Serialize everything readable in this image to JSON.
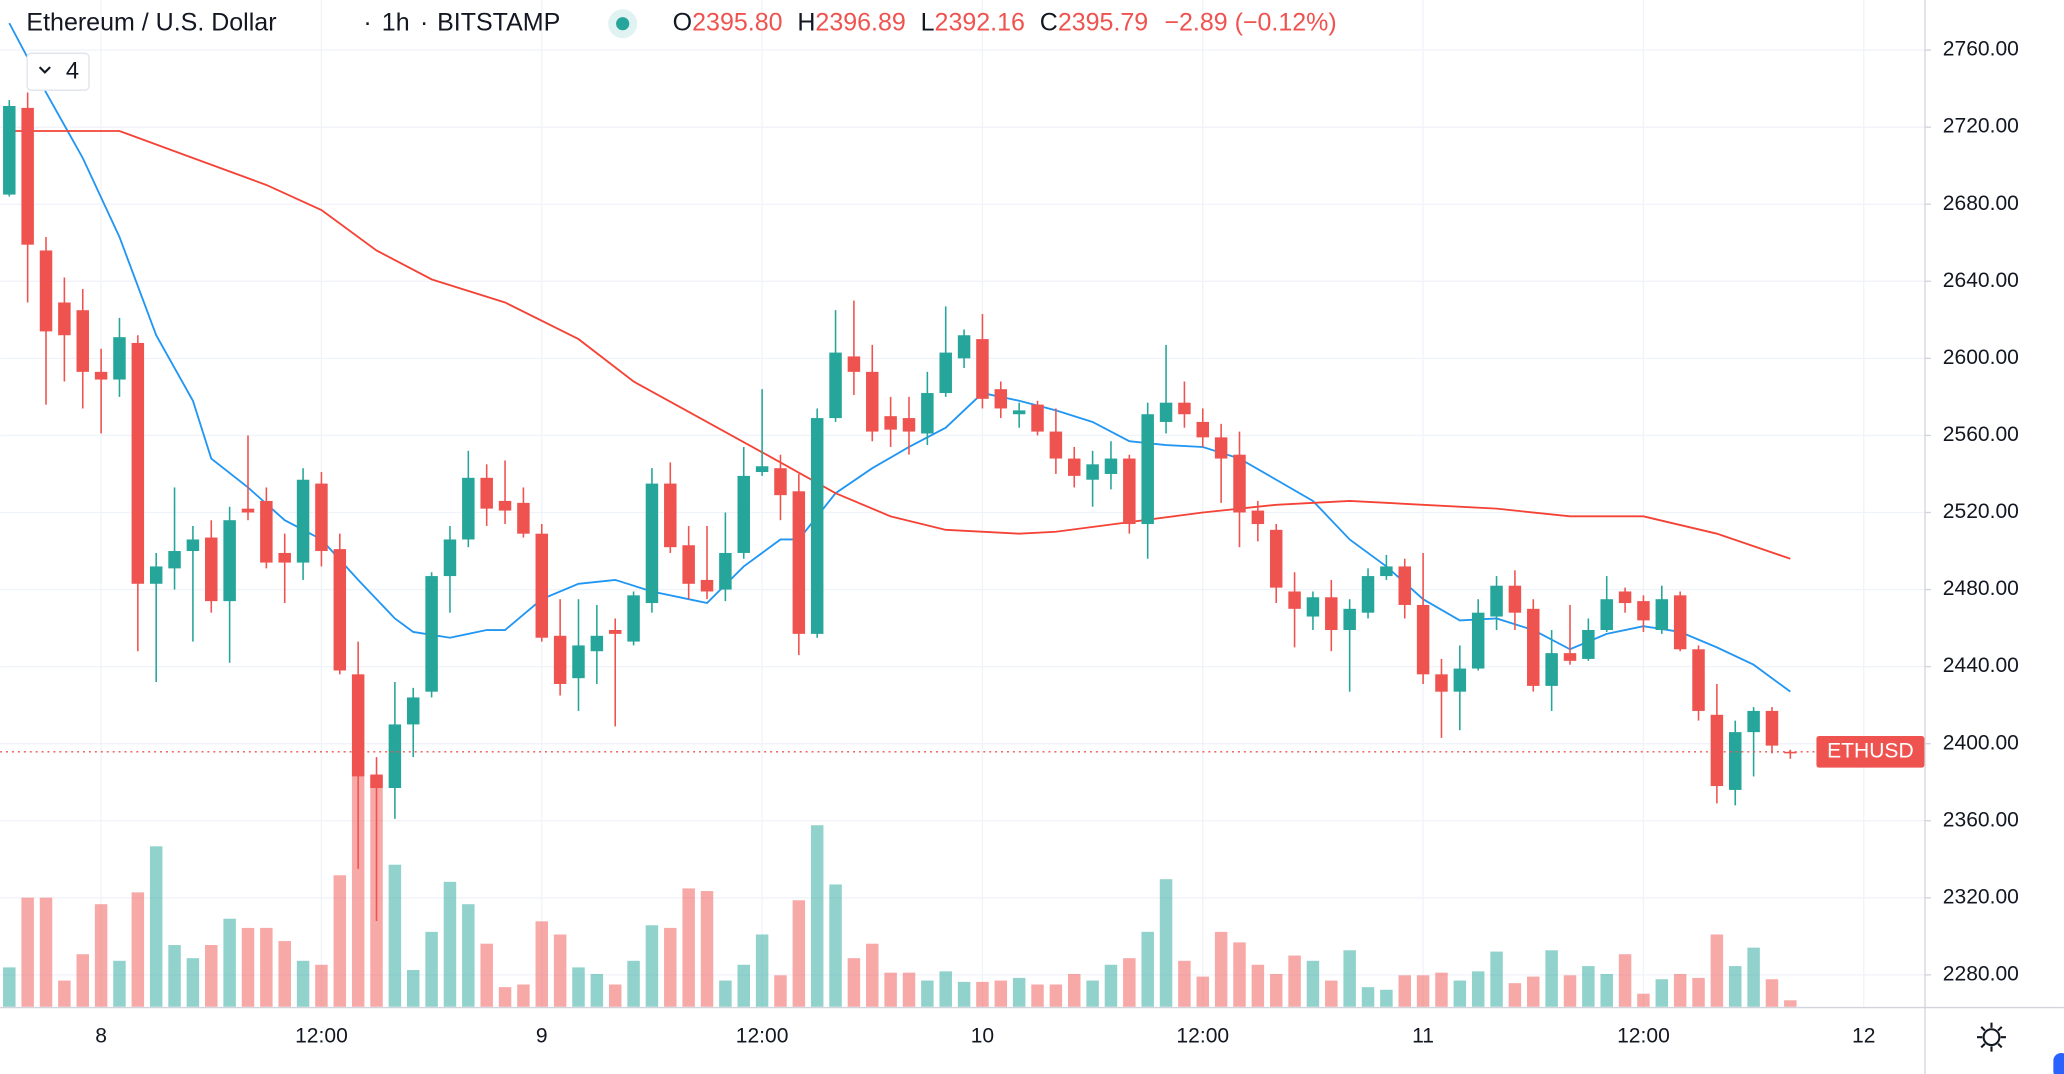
{
  "chart_data": {
    "type": "candlestick",
    "title": "Ethereum / U.S. Dollar",
    "interval": "1h",
    "exchange": "BITSTAMP",
    "legend_values": [
      {
        "label": "O",
        "value": "2395.80"
      },
      {
        "label": "H",
        "value": "2396.89"
      },
      {
        "label": "L",
        "value": "2392.16"
      },
      {
        "label": "C",
        "value": "2395.79"
      }
    ],
    "change": "−2.89 (−0.12%)",
    "hidden_indicators": 4,
    "up_color": "#26a69a",
    "down_color": "#ef5350",
    "open": [
      2685,
      2730,
      2656,
      2629,
      2625,
      2593,
      2589,
      2608,
      2483,
      2491,
      2500,
      2507,
      2474,
      2522,
      2526,
      2499,
      2494,
      2535,
      2501,
      2436,
      2384,
      2377,
      2410,
      2427,
      2487,
      2506,
      2538,
      2526,
      2525,
      2509,
      2456,
      2434,
      2448,
      2459,
      2453,
      2473,
      2535,
      2503,
      2485,
      2480,
      2499,
      2541,
      2543,
      2531,
      2457,
      2569,
      2601,
      2593,
      2570,
      2569,
      2561,
      2582,
      2600,
      2610,
      2584,
      2571,
      2576,
      2562,
      2548,
      2537,
      2540,
      2548,
      2514,
      2567,
      2577,
      2567,
      2559,
      2550,
      2521,
      2511,
      2479,
      2466,
      2476,
      2459,
      2468,
      2487,
      2492,
      2472,
      2436,
      2427,
      2439,
      2466,
      2482,
      2470,
      2430,
      2447,
      2444,
      2459,
      2479,
      2474,
      2459,
      2477,
      2449,
      2415,
      2376,
      2406,
      2417,
      2395.8
    ],
    "high": [
      2734,
      2738,
      2663,
      2642,
      2636,
      2605,
      2621,
      2612,
      2499,
      2533,
      2513,
      2516,
      2523,
      2560,
      2533,
      2509,
      2543,
      2541,
      2509,
      2453,
      2393,
      2432,
      2429,
      2489,
      2513,
      2552,
      2545,
      2547,
      2533,
      2514,
      2475,
      2475,
      2472,
      2465,
      2479,
      2543,
      2546,
      2513,
      2513,
      2520,
      2554,
      2584,
      2550,
      2540,
      2574,
      2625,
      2630,
      2607,
      2580,
      2580,
      2593,
      2627,
      2615,
      2623,
      2588,
      2577,
      2578,
      2574,
      2554,
      2552,
      2557,
      2550,
      2577,
      2607,
      2588,
      2574,
      2566,
      2562,
      2526,
      2514,
      2489,
      2479,
      2485,
      2475,
      2491,
      2498,
      2496,
      2499,
      2444,
      2451,
      2475,
      2487,
      2490,
      2475,
      2459,
      2472,
      2465,
      2487,
      2481,
      2477,
      2482,
      2479,
      2451,
      2431,
      2412,
      2419,
      2419,
      2396.89
    ],
    "low": [
      2684,
      2629,
      2576,
      2588,
      2574,
      2561,
      2580,
      2448,
      2432,
      2480,
      2453,
      2468,
      2442,
      2516,
      2491,
      2473,
      2485,
      2492,
      2436,
      2335,
      2308,
      2361,
      2393,
      2424,
      2468,
      2502,
      2513,
      2514,
      2507,
      2453,
      2425,
      2417,
      2431,
      2409,
      2451,
      2468,
      2499,
      2475,
      2475,
      2474,
      2496,
      2539,
      2516,
      2446,
      2455,
      2567,
      2581,
      2557,
      2554,
      2550,
      2555,
      2580,
      2595,
      2574,
      2569,
      2564,
      2560,
      2540,
      2533,
      2523,
      2532,
      2509,
      2496,
      2561,
      2564,
      2554,
      2525,
      2502,
      2505,
      2473,
      2450,
      2459,
      2448,
      2427,
      2465,
      2485,
      2465,
      2431,
      2403,
      2407,
      2438,
      2459,
      2459,
      2427,
      2417,
      2441,
      2443,
      2458,
      2468,
      2458,
      2457,
      2448,
      2412,
      2369,
      2368,
      2383,
      2395,
      2392.16
    ],
    "close": [
      2731,
      2659,
      2614,
      2612,
      2593,
      2589,
      2611,
      2483,
      2492,
      2500,
      2506,
      2474,
      2516,
      2520,
      2494,
      2494,
      2537,
      2500,
      2438,
      2383,
      2377,
      2410,
      2424,
      2487,
      2506,
      2538,
      2522,
      2521,
      2509,
      2455,
      2431,
      2451,
      2456,
      2457,
      2477,
      2535,
      2502,
      2483,
      2479,
      2499,
      2539,
      2544,
      2529,
      2457,
      2569,
      2603,
      2593,
      2562,
      2563,
      2562,
      2582,
      2603,
      2612,
      2579,
      2574,
      2573,
      2562,
      2548,
      2539,
      2545,
      2548,
      2514,
      2571,
      2577,
      2571,
      2559,
      2548,
      2520,
      2514,
      2481,
      2470,
      2476,
      2459,
      2470,
      2487,
      2492,
      2472,
      2436,
      2427,
      2439,
      2468,
      2482,
      2468,
      2430,
      2447,
      2443,
      2459,
      2475,
      2473,
      2464,
      2475,
      2449,
      2417,
      2378,
      2406,
      2417,
      2399,
      2395.79
    ],
    "volume": [
      30,
      83,
      83,
      20,
      40,
      78,
      35,
      87,
      122,
      47,
      37,
      47,
      67,
      60,
      60,
      50,
      35,
      32,
      100,
      175,
      175,
      108,
      28,
      57,
      95,
      78,
      48,
      15,
      17,
      65,
      55,
      30,
      25,
      17,
      35,
      62,
      60,
      90,
      88,
      20,
      32,
      55,
      24,
      81,
      138,
      93,
      37,
      48,
      26,
      26,
      20,
      27,
      19,
      19,
      20,
      22,
      17,
      17,
      25,
      20,
      32,
      37,
      57,
      97,
      35,
      23,
      57,
      49,
      32,
      25,
      39,
      35,
      20,
      43,
      15,
      13,
      24,
      24,
      26,
      20,
      27,
      42,
      18,
      23,
      43,
      24,
      31,
      25,
      40,
      10,
      21,
      25,
      22,
      55,
      31,
      45,
      21,
      5
    ],
    "moving_averages": [
      {
        "color": "#2196f3",
        "x": [
          0,
          2,
          4,
          6,
          8,
          10,
          11,
          13,
          15,
          17,
          19,
          21,
          22,
          24,
          26,
          27,
          29,
          31,
          33,
          35,
          37,
          38,
          40,
          42,
          43,
          45,
          47,
          49,
          51,
          53,
          55,
          57,
          59,
          61,
          63,
          65,
          67,
          69,
          71,
          73,
          75,
          77,
          79,
          81,
          83,
          85,
          87,
          89,
          91,
          93,
          95,
          97
        ],
        "values": [
          2774,
          2738,
          2704,
          2663,
          2612,
          2578,
          2548,
          2533,
          2516,
          2506,
          2485,
          2465,
          2458,
          2455,
          2459,
          2459,
          2475,
          2483,
          2485,
          2479,
          2475,
          2473,
          2492,
          2506,
          2506,
          2530,
          2543,
          2554,
          2564,
          2582,
          2578,
          2573,
          2567,
          2557,
          2555,
          2554,
          2548,
          2537,
          2526,
          2506,
          2492,
          2475,
          2464,
          2465,
          2459,
          2449,
          2457,
          2461,
          2458,
          2450,
          2441,
          2427
        ]
      },
      {
        "color": "#f44336",
        "x": [
          0,
          3,
          6,
          10,
          14,
          17,
          20,
          23,
          27,
          31,
          34,
          38,
          42,
          45,
          48,
          51,
          55,
          57,
          61,
          65,
          69,
          73,
          77,
          81,
          85,
          89,
          93,
          97
        ],
        "values": [
          2718,
          2718,
          2718,
          2704,
          2690,
          2677,
          2656,
          2641,
          2629,
          2610,
          2588,
          2567,
          2546,
          2530,
          2518,
          2511,
          2509,
          2510,
          2515,
          2520,
          2524,
          2526,
          2524,
          2522,
          2518,
          2518,
          2509,
          2496
        ]
      }
    ],
    "last_price": {
      "label": "ETHUSD",
      "value": 2395.79
    },
    "xlim": [
      -0.5,
      104.3
    ],
    "xticks": [
      {
        "value": 5,
        "label": "8"
      },
      {
        "value": 17,
        "label": "12:00"
      },
      {
        "value": 29,
        "label": "9"
      },
      {
        "value": 41,
        "label": "12:00"
      },
      {
        "value": 53,
        "label": "10"
      },
      {
        "value": 65,
        "label": "12:00"
      },
      {
        "value": 77,
        "label": "11"
      },
      {
        "value": 89,
        "label": "12:00"
      },
      {
        "value": 101,
        "label": "12"
      }
    ],
    "ylim": [
      2263.4,
      2786
    ],
    "yticks": [
      {
        "value": 2280,
        "label": "2280.00"
      },
      {
        "value": 2320,
        "label": "2320.00"
      },
      {
        "value": 2360,
        "label": "2360.00"
      },
      {
        "value": 2400,
        "label": "2400.00"
      },
      {
        "value": 2440,
        "label": "2440.00"
      },
      {
        "value": 2480,
        "label": "2480.00"
      },
      {
        "value": 2520,
        "label": "2520.00"
      },
      {
        "value": 2560,
        "label": "2560.00"
      },
      {
        "value": 2600,
        "label": "2600.00"
      },
      {
        "value": 2640,
        "label": "2640.00"
      },
      {
        "value": 2680,
        "label": "2680.00"
      },
      {
        "value": 2720,
        "label": "2720.00"
      },
      {
        "value": 2760,
        "label": "2760.00"
      }
    ],
    "grid": true
  }
}
